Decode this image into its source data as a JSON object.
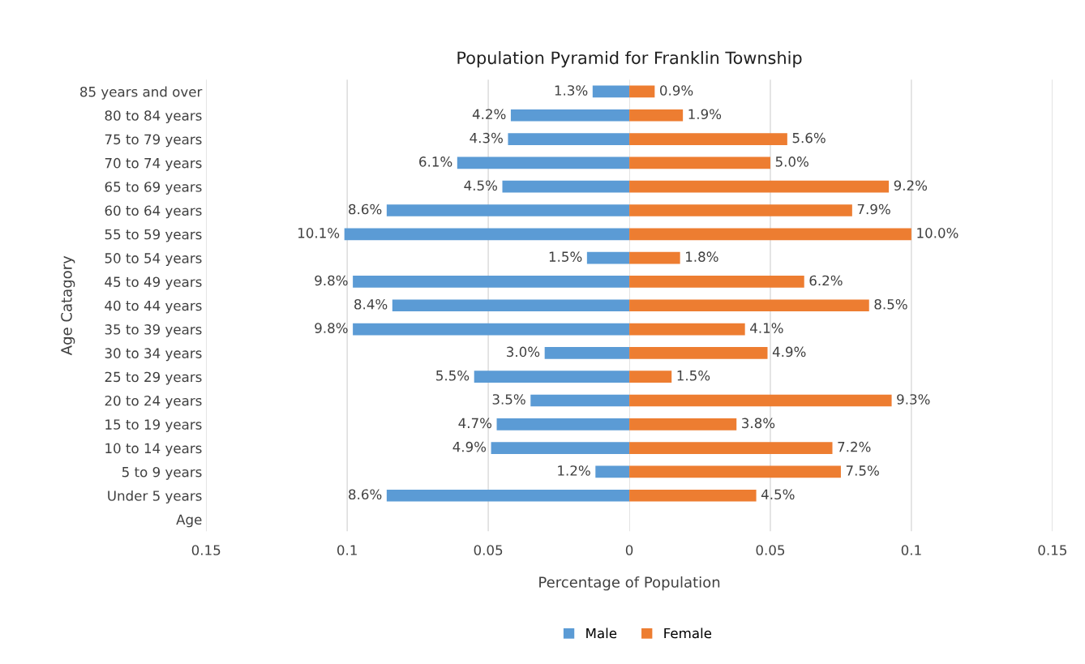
{
  "chart_data": [
    {
      "type": "bar",
      "orientation": "horizontal",
      "ylabel": "Age Catagory",
      "categories": [
        "85 years and over",
        "80 to 84 years",
        "75 to 79 years",
        "70 to 74 years",
        "65 to 69 years",
        "60 to 64 years",
        "55 to 59 years",
        "50 to 54 years",
        "45 to 49 years",
        "40 to 44 years",
        "35 to 39 years",
        "30 to 34 years",
        "25 to 29 years",
        "20 to 24 years",
        "15 to 19 years",
        "10 to 14 years",
        "5 to 9 years",
        "Under 5 years",
        "Age"
      ],
      "series": [
        {
          "name": "Male",
          "color": "#5b9bd5",
          "values": [
            0.013,
            0.042,
            0.043,
            0.061,
            0.045,
            0.086,
            0.101,
            0.015,
            0.098,
            0.084,
            0.098,
            0.03,
            0.055,
            0.035,
            0.047,
            0.049,
            0.012,
            0.086,
            null
          ],
          "value_labels": [
            "1.3%",
            "4.2%",
            "4.3%",
            "6.1%",
            "4.5%",
            "8.6%",
            "10.1%",
            "1.5%",
            "9.8%",
            "8.4%",
            "9.8%",
            "3.0%",
            "5.5%",
            "3.5%",
            "4.7%",
            "4.9%",
            "1.2%",
            "8.6%",
            null
          ]
        }
      ],
      "xlim": [
        0.15,
        0
      ],
      "xticks": [
        0.15,
        0.1,
        0.05
      ],
      "grid": "x",
      "legend": "bottom"
    },
    {
      "type": "bar",
      "orientation": "horizontal",
      "title": "Population Pyramid for Franklin Township",
      "xlabel": "Percentage of Population",
      "categories": [
        null,
        null,
        null,
        null,
        null,
        null,
        null,
        null,
        null,
        null,
        null,
        null,
        null,
        null,
        null,
        null,
        null,
        null,
        null
      ],
      "series": [
        {
          "name": "Female",
          "color": "#ed7d31",
          "values": [
            0.009,
            0.019,
            0.056,
            0.05,
            0.092,
            0.079,
            0.1,
            0.018,
            0.062,
            0.085,
            0.041,
            0.049,
            0.015,
            0.093,
            0.038,
            0.072,
            0.075,
            0.045,
            null
          ],
          "value_labels": [
            "0.9%",
            "1.9%",
            "5.6%",
            "5.0%",
            "9.2%",
            "7.9%",
            "10.0%",
            "1.8%",
            "6.2%",
            "8.5%",
            "4.1%",
            "4.9%",
            "1.5%",
            "9.3%",
            "3.8%",
            "7.2%",
            "7.5%",
            "4.5%",
            null
          ]
        }
      ],
      "xlim": [
        0,
        0.15
      ],
      "xticks": [
        0,
        0.05,
        0.1,
        0.15
      ],
      "grid": "x",
      "legend": "bottom",
      "tick_labels": "x"
    }
  ]
}
